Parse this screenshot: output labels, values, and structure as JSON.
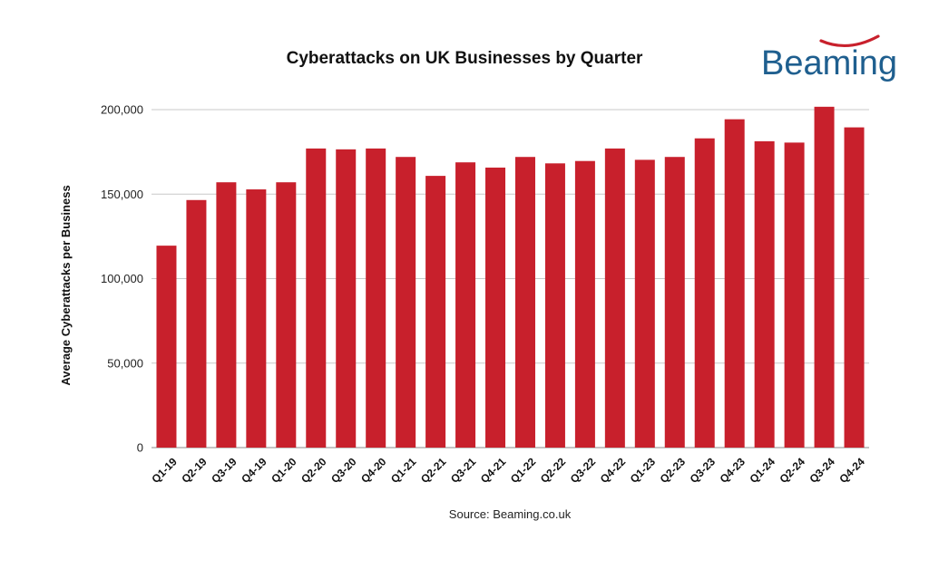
{
  "brand": {
    "logo_text": "Beaming",
    "logo_color": "#1f5f8f",
    "swoosh_color": "#c8202c"
  },
  "source_text": "Source: Beaming.co.uk",
  "chart_data": {
    "type": "bar",
    "title": "Cyberattacks on UK Businesses by Quarter",
    "xlabel": "",
    "ylabel": "Average Cyberattacks per Business",
    "ylim": [
      0,
      200000
    ],
    "y_ticks": [
      0,
      50000,
      100000,
      150000,
      200000
    ],
    "y_tick_labels": [
      "0",
      "50,000",
      "100,000",
      "150,000",
      "200,000"
    ],
    "grid": true,
    "bar_color": "#c8202c",
    "categories": [
      "Q1-19",
      "Q2-19",
      "Q3-19",
      "Q4-19",
      "Q1-20",
      "Q2-20",
      "Q3-20",
      "Q4-20",
      "Q1-21",
      "Q2-21",
      "Q3-21",
      "Q4-21",
      "Q1-22",
      "Q2-22",
      "Q3-22",
      "Q4-22",
      "Q1-23",
      "Q2-23",
      "Q3-23",
      "Q4-23",
      "Q1-24",
      "Q2-24",
      "Q3-24",
      "Q4-24"
    ],
    "values": [
      119500,
      146500,
      157000,
      152800,
      157000,
      177000,
      176500,
      177000,
      172000,
      160800,
      168800,
      165700,
      172000,
      168200,
      169600,
      177000,
      170300,
      172000,
      183000,
      194300,
      181300,
      180500,
      201700,
      189500
    ]
  }
}
